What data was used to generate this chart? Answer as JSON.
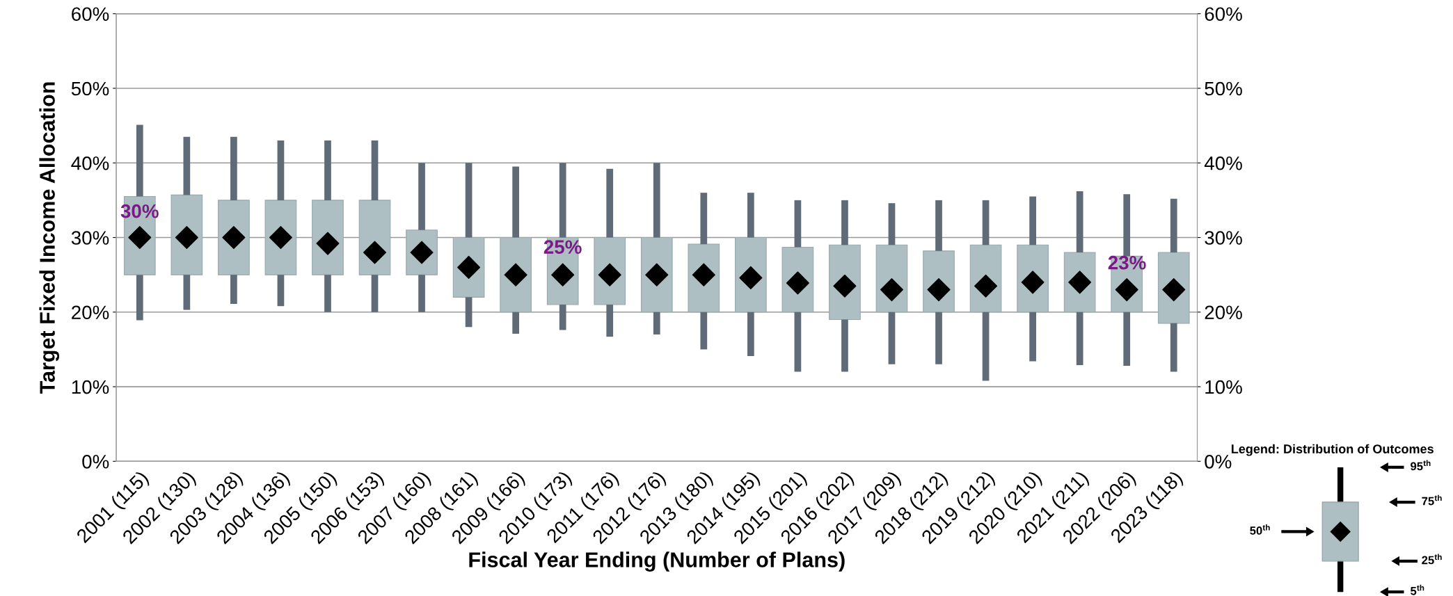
{
  "chart_data": {
    "type": "box",
    "xlabel": "Fiscal Year Ending (Number of Plans)",
    "ylabel": "Target Fixed Income Allocation",
    "categories": [
      "2001 (115)",
      "2002 (130)",
      "2003 (128)",
      "2004 (136)",
      "2005 (150)",
      "2006 (153)",
      "2007 (160)",
      "2008 (161)",
      "2009 (166)",
      "2010 (173)",
      "2011 (176)",
      "2012 (176)",
      "2013 (180)",
      "2014 (195)",
      "2015 (201)",
      "2016 (202)",
      "2017 (209)",
      "2018 (212)",
      "2019 (212)",
      "2020 (210)",
      "2021 (211)",
      "2022 (206)",
      "2023 (118)"
    ],
    "series": [
      {
        "color": "#adbfc3",
        "boxes": [
          {
            "low": 18.9,
            "q1": 25,
            "median": 30,
            "q3": 35.5,
            "high": 45.1
          },
          {
            "low": 20.3,
            "q1": 25,
            "median": 30,
            "q3": 35.7,
            "high": 43.5
          },
          {
            "low": 21.1,
            "q1": 25,
            "median": 30,
            "q3": 35,
            "high": 43.5
          },
          {
            "low": 20.8,
            "q1": 25,
            "median": 30,
            "q3": 35,
            "high": 43
          },
          {
            "low": 20,
            "q1": 25,
            "median": 29.2,
            "q3": 35,
            "high": 43
          },
          {
            "low": 20,
            "q1": 25,
            "median": 28,
            "q3": 35,
            "high": 43
          },
          {
            "low": 20,
            "q1": 25,
            "median": 28,
            "q3": 31,
            "high": 40
          },
          {
            "low": 18,
            "q1": 22,
            "median": 26,
            "q3": 30,
            "high": 40
          },
          {
            "low": 17.1,
            "q1": 20,
            "median": 25,
            "q3": 30,
            "high": 39.5
          },
          {
            "low": 17.6,
            "q1": 21,
            "median": 25,
            "q3": 30,
            "high": 40
          },
          {
            "low": 16.7,
            "q1": 21,
            "median": 25,
            "q3": 30,
            "high": 39.2
          },
          {
            "low": 17,
            "q1": 20,
            "median": 25,
            "q3": 30,
            "high": 40
          },
          {
            "low": 15,
            "q1": 20,
            "median": 25,
            "q3": 29.1,
            "high": 36
          },
          {
            "low": 14.1,
            "q1": 20,
            "median": 24.6,
            "q3": 30,
            "high": 36
          },
          {
            "low": 12,
            "q1": 20,
            "median": 23.9,
            "q3": 28.7,
            "high": 35
          },
          {
            "low": 12,
            "q1": 19,
            "median": 23.5,
            "q3": 29,
            "high": 35
          },
          {
            "low": 13,
            "q1": 20,
            "median": 23,
            "q3": 29,
            "high": 34.6
          },
          {
            "low": 13,
            "q1": 20,
            "median": 23,
            "q3": 28.2,
            "high": 35
          },
          {
            "low": 10.8,
            "q1": 20,
            "median": 23.5,
            "q3": 29,
            "high": 35
          },
          {
            "low": 13.4,
            "q1": 20,
            "median": 24,
            "q3": 29,
            "high": 35.5
          },
          {
            "low": 12.9,
            "q1": 20,
            "median": 24,
            "q3": 28,
            "high": 36.2
          },
          {
            "low": 12.8,
            "q1": 20,
            "median": 23,
            "q3": 27.5,
            "high": 35.8
          },
          {
            "low": 12,
            "q1": 18.5,
            "median": 23,
            "q3": 28,
            "high": 35.2
          }
        ]
      }
    ],
    "ylim": [
      0,
      60
    ],
    "yticks": [
      {
        "value": 0,
        "label": "0%"
      },
      {
        "value": 10,
        "label": "10%"
      },
      {
        "value": 20,
        "label": "20%"
      },
      {
        "value": 30,
        "label": "30%"
      },
      {
        "value": 40,
        "label": "40%"
      },
      {
        "value": 50,
        "label": "50%"
      },
      {
        "value": 60,
        "label": "60%"
      }
    ],
    "y2lim": [
      0,
      60
    ],
    "y2ticks": [
      {
        "value": 0,
        "label": "0%"
      },
      {
        "value": 10,
        "label": "10%"
      },
      {
        "value": 20,
        "label": "20%"
      },
      {
        "value": 30,
        "label": "30%"
      },
      {
        "value": 40,
        "label": "40%"
      },
      {
        "value": 50,
        "label": "50%"
      },
      {
        "value": 60,
        "label": "60%"
      }
    ],
    "grid": "y",
    "marker": "diamond",
    "annotations": [
      "30%",
      "25%",
      "23%",
      "Legend: Distribution of Outcomes",
      "95$^{th}$",
      "75$^{th}$",
      "50$^{th}$",
      "25$^{th}$",
      "5$^{th}$"
    ]
  }
}
